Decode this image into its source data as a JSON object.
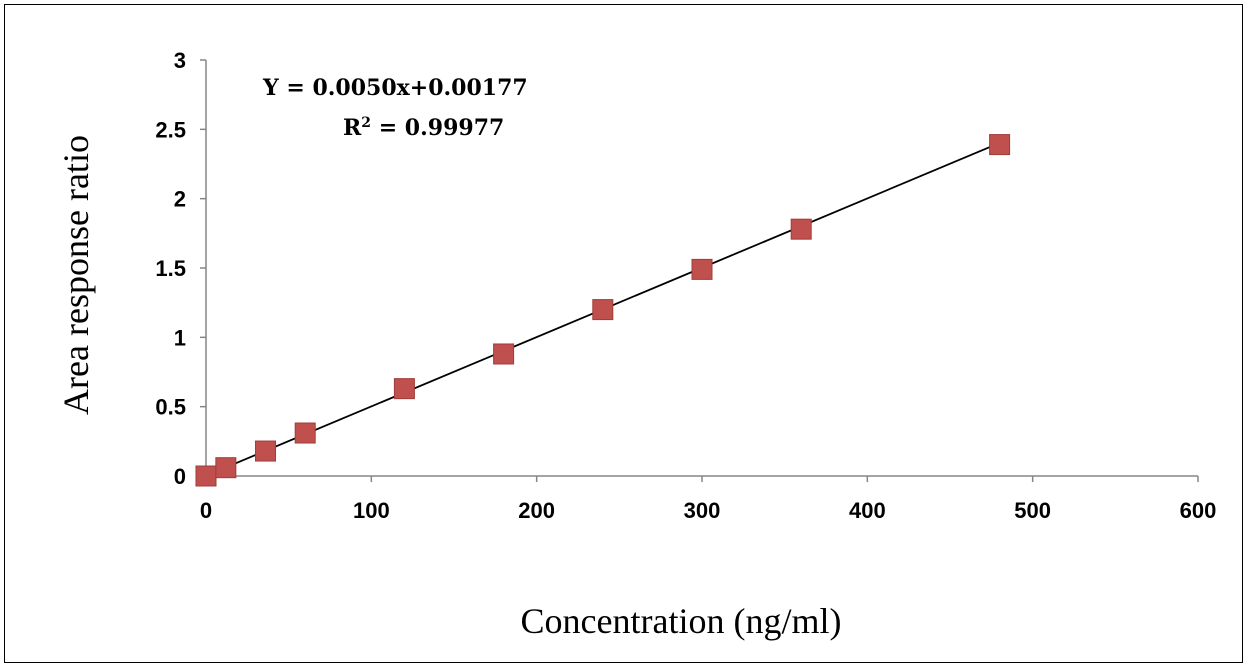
{
  "chart_data": {
    "type": "scatter",
    "xlabel": "Concentration (ng/ml)",
    "ylabel": "Area response ratio",
    "xlim": [
      0,
      600
    ],
    "ylim": [
      0,
      3
    ],
    "xticks": [
      "0",
      "100",
      "200",
      "300",
      "400",
      "500",
      "600"
    ],
    "yticks": [
      "0",
      "0.5",
      "1",
      "1.5",
      "2",
      "2.5",
      "3"
    ],
    "grid": false,
    "legend": "none",
    "marker_color": "#c0504d",
    "trendline_color": "#000000",
    "points": [
      {
        "x": 0,
        "y": 0.0
      },
      {
        "x": 12,
        "y": 0.06
      },
      {
        "x": 36,
        "y": 0.18
      },
      {
        "x": 60,
        "y": 0.31
      },
      {
        "x": 120,
        "y": 0.63
      },
      {
        "x": 180,
        "y": 0.88
      },
      {
        "x": 240,
        "y": 1.2
      },
      {
        "x": 300,
        "y": 1.49
      },
      {
        "x": 360,
        "y": 1.78
      },
      {
        "x": 480,
        "y": 2.39
      }
    ],
    "trendline": {
      "slope": 0.005,
      "intercept": 0.00177,
      "x_range": [
        0,
        480
      ]
    },
    "annotations": {
      "equation": "Y = 0.0050x+0.00177",
      "r_squared_prefix": "R",
      "r_squared_sup": "2",
      "r_squared_value": " = 0.99977"
    }
  }
}
